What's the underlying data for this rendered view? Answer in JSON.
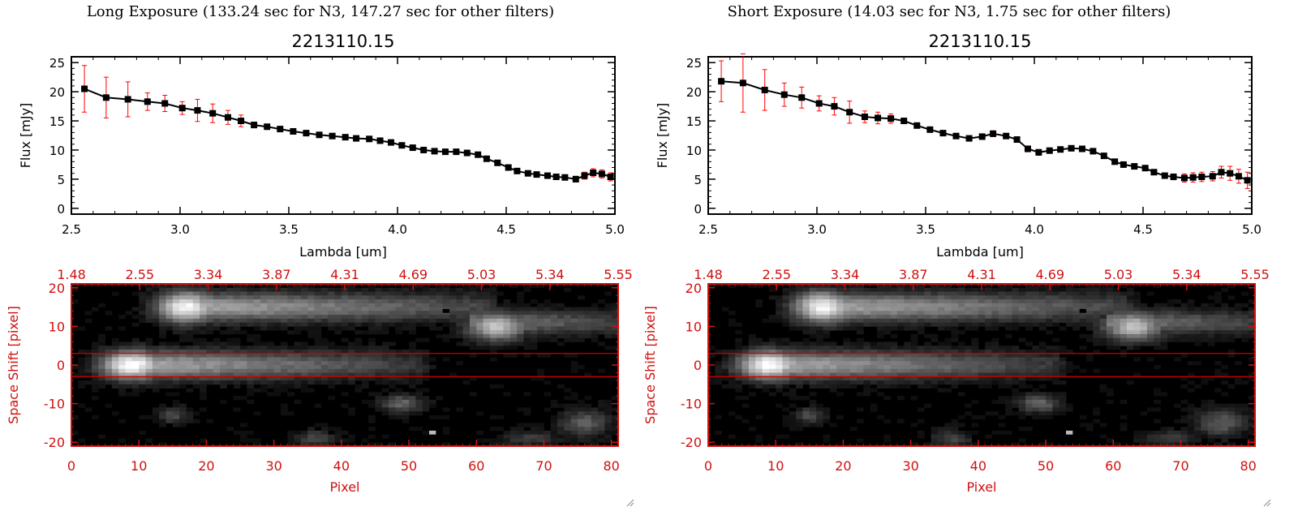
{
  "panels": [
    {
      "title": "Long Exposure (133.24 sec for N3, 147.27 sec for other filters)",
      "plot_title": "2213110.15"
    },
    {
      "title": "Short Exposure (14.03 sec for N3, 1.75 sec for other filters)",
      "plot_title": "2213110.15"
    }
  ],
  "colors": {
    "axis": "#000000",
    "error_bar": "#ff0000",
    "image_axis": "#d01010",
    "extraction_line": "#cc0000",
    "marker": "#000000"
  },
  "chart_data": [
    {
      "type": "line",
      "title": "2213110.15",
      "xlabel": "Lambda [um]",
      "ylabel": "Flux [mJy]",
      "xlim": [
        2.5,
        5.0
      ],
      "ylim": [
        -1,
        26
      ],
      "xticks": [
        "2.5",
        "3.0",
        "3.5",
        "4.0",
        "4.5",
        "5.0"
      ],
      "yticks": [
        "0",
        "5",
        "10",
        "15",
        "20",
        "25"
      ],
      "series": [
        {
          "x": [
            2.56,
            2.66,
            2.76,
            2.85,
            2.93,
            3.01,
            3.08,
            3.15,
            3.22,
            3.28,
            3.34,
            3.4,
            3.46,
            3.52,
            3.58,
            3.64,
            3.7,
            3.76,
            3.81,
            3.87,
            3.92,
            3.97,
            4.02,
            4.07,
            4.12,
            4.17,
            4.22,
            4.27,
            4.32,
            4.37,
            4.41,
            4.46,
            4.51,
            4.55,
            4.6,
            4.64,
            4.69,
            4.73,
            4.77,
            4.82,
            4.86,
            4.9,
            4.94,
            4.98
          ],
          "y": [
            20.5,
            19.0,
            18.7,
            18.3,
            18.0,
            17.2,
            16.8,
            16.3,
            15.6,
            15.0,
            14.3,
            14.0,
            13.6,
            13.2,
            12.9,
            12.6,
            12.4,
            12.2,
            12.0,
            11.9,
            11.6,
            11.3,
            10.8,
            10.4,
            10.0,
            9.8,
            9.7,
            9.7,
            9.5,
            9.2,
            8.5,
            7.8,
            7.0,
            6.4,
            6.0,
            5.8,
            5.6,
            5.4,
            5.3,
            5.0,
            5.6,
            6.1,
            5.9,
            5.4
          ],
          "yerr": [
            4.0,
            3.5,
            3.0,
            1.5,
            1.4,
            1.1,
            1.9,
            1.6,
            1.2,
            1.0,
            0.5,
            0.4,
            0.4,
            0.4,
            0.4,
            0.4,
            0.4,
            0.4,
            0.4,
            0.4,
            0.4,
            0.4,
            0.4,
            0.4,
            0.4,
            0.4,
            0.4,
            0.4,
            0.4,
            0.4,
            0.4,
            0.4,
            0.4,
            0.4,
            0.4,
            0.4,
            0.4,
            0.4,
            0.4,
            0.5,
            0.6,
            0.7,
            0.7,
            0.7
          ]
        }
      ],
      "image": {
        "xlabel": "Pixel",
        "ylabel": "Space Shift [pixel]",
        "xlim": [
          0,
          81
        ],
        "ylim": [
          -21,
          21
        ],
        "xticks": [
          "0",
          "10",
          "20",
          "30",
          "40",
          "50",
          "60",
          "70",
          "80"
        ],
        "yticks": [
          "-20",
          "-10",
          "0",
          "10",
          "20"
        ],
        "top_ticks": [
          "1.48",
          "2.55",
          "3.34",
          "3.87",
          "4.31",
          "4.69",
          "5.03",
          "5.34",
          "5.55"
        ],
        "extraction_lines": [
          3,
          -3
        ]
      }
    },
    {
      "type": "line",
      "title": "2213110.15",
      "xlabel": "Lambda [um]",
      "ylabel": "Flux [mJy]",
      "xlim": [
        2.5,
        5.0
      ],
      "ylim": [
        -1,
        26
      ],
      "xticks": [
        "2.5",
        "3.0",
        "3.5",
        "4.0",
        "4.5",
        "5.0"
      ],
      "yticks": [
        "0",
        "5",
        "10",
        "15",
        "20",
        "25"
      ],
      "series": [
        {
          "x": [
            2.56,
            2.66,
            2.76,
            2.85,
            2.93,
            3.01,
            3.08,
            3.15,
            3.22,
            3.28,
            3.34,
            3.4,
            3.46,
            3.52,
            3.58,
            3.64,
            3.7,
            3.76,
            3.81,
            3.87,
            3.92,
            3.97,
            4.02,
            4.07,
            4.12,
            4.17,
            4.22,
            4.27,
            4.32,
            4.37,
            4.41,
            4.46,
            4.51,
            4.55,
            4.6,
            4.64,
            4.69,
            4.73,
            4.77,
            4.82,
            4.86,
            4.9,
            4.94,
            4.98
          ],
          "y": [
            21.8,
            21.5,
            20.3,
            19.5,
            19.0,
            18.0,
            17.5,
            16.5,
            15.7,
            15.5,
            15.4,
            15.0,
            14.2,
            13.5,
            12.9,
            12.4,
            12.0,
            12.3,
            12.8,
            12.4,
            11.8,
            10.2,
            9.6,
            9.9,
            10.1,
            10.3,
            10.2,
            9.8,
            9.0,
            8.0,
            7.5,
            7.2,
            6.9,
            6.2,
            5.6,
            5.4,
            5.2,
            5.3,
            5.4,
            5.5,
            6.2,
            6.0,
            5.5,
            4.8
          ],
          "yerr": [
            3.5,
            5.0,
            3.5,
            2.0,
            1.8,
            1.3,
            1.5,
            1.9,
            1.0,
            1.0,
            0.8,
            0.4,
            0.4,
            0.4,
            0.4,
            0.4,
            0.4,
            0.4,
            0.5,
            0.4,
            0.4,
            0.5,
            0.5,
            0.4,
            0.4,
            0.4,
            0.4,
            0.4,
            0.4,
            0.4,
            0.4,
            0.4,
            0.4,
            0.4,
            0.4,
            0.5,
            0.7,
            0.8,
            0.8,
            0.8,
            1.0,
            1.2,
            1.2,
            1.4
          ]
        }
      ],
      "image": {
        "xlabel": "Pixel",
        "ylabel": "Space Shift [pixel]",
        "xlim": [
          0,
          81
        ],
        "ylim": [
          -21,
          21
        ],
        "xticks": [
          "0",
          "10",
          "20",
          "30",
          "40",
          "50",
          "60",
          "70",
          "80"
        ],
        "yticks": [
          "-20",
          "-10",
          "0",
          "10",
          "20"
        ],
        "top_ticks": [
          "1.48",
          "2.55",
          "3.34",
          "3.87",
          "4.31",
          "4.69",
          "5.03",
          "5.34",
          "5.55"
        ],
        "extraction_lines": [
          3,
          -3
        ]
      }
    }
  ]
}
